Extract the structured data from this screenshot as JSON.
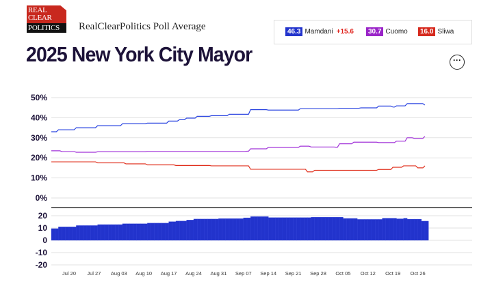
{
  "logo": {
    "line1": "REAL",
    "line2": "CLEAR",
    "line3": "POLITICS"
  },
  "header": {
    "subtitle": "RealClearPolitics Poll Average",
    "title": "2025 New York City Mayor",
    "more_icon": "ellipsis-icon"
  },
  "legend": [
    {
      "value": "46.3",
      "name": "Mamdani",
      "delta": "+15.6",
      "color": "#2233cc"
    },
    {
      "value": "30.7",
      "name": "Cuomo",
      "delta": "",
      "color": "#9a24c8"
    },
    {
      "value": "16.0",
      "name": "Sliwa",
      "delta": "",
      "color": "#d62a1e"
    }
  ],
  "chart_data": [
    {
      "type": "line",
      "ylim": [
        0,
        50
      ],
      "y_ticks": [
        "50%",
        "40%",
        "30%",
        "20%",
        "10%",
        "0%"
      ],
      "grid": true,
      "series": [
        {
          "name": "Mamdani",
          "color": "#2a44e0",
          "points": [
            [
              "2025-07-15",
              33
            ],
            [
              "2025-07-17",
              34
            ],
            [
              "2025-07-22",
              35
            ],
            [
              "2025-07-28",
              36
            ],
            [
              "2025-08-04",
              37
            ],
            [
              "2025-08-11",
              37.3
            ],
            [
              "2025-08-17",
              38.3
            ],
            [
              "2025-08-20",
              39
            ],
            [
              "2025-08-22",
              39.8
            ],
            [
              "2025-08-25",
              40.7
            ],
            [
              "2025-08-29",
              41
            ],
            [
              "2025-09-03",
              41.7
            ],
            [
              "2025-09-09",
              44
            ],
            [
              "2025-09-14",
              43.8
            ],
            [
              "2025-09-23",
              44.5
            ],
            [
              "2025-10-04",
              44.7
            ],
            [
              "2025-10-10",
              44.9
            ],
            [
              "2025-10-15",
              45.8
            ],
            [
              "2025-10-19",
              45.3
            ],
            [
              "2025-10-20",
              45.9
            ],
            [
              "2025-10-23",
              47
            ],
            [
              "2025-10-26",
              47
            ],
            [
              "2025-10-28",
              46.3
            ]
          ]
        },
        {
          "name": "Cuomo",
          "color": "#a030d8",
          "points": [
            [
              "2025-07-15",
              23.5
            ],
            [
              "2025-07-18",
              23.1
            ],
            [
              "2025-07-22",
              22.8
            ],
            [
              "2025-07-28",
              23
            ],
            [
              "2025-08-11",
              23.2
            ],
            [
              "2025-09-08",
              23.3
            ],
            [
              "2025-09-09",
              24.5
            ],
            [
              "2025-09-14",
              25.2
            ],
            [
              "2025-09-23",
              25.8
            ],
            [
              "2025-09-26",
              25.4
            ],
            [
              "2025-10-03",
              25.3
            ],
            [
              "2025-10-04",
              27
            ],
            [
              "2025-10-08",
              27.8
            ],
            [
              "2025-10-15",
              27.6
            ],
            [
              "2025-10-20",
              28.3
            ],
            [
              "2025-10-23",
              30
            ],
            [
              "2025-10-25",
              29.7
            ],
            [
              "2025-10-28",
              30.7
            ]
          ]
        },
        {
          "name": "Sliwa",
          "color": "#e0301e",
          "points": [
            [
              "2025-07-15",
              18
            ],
            [
              "2025-07-28",
              17.5
            ],
            [
              "2025-08-05",
              17
            ],
            [
              "2025-08-11",
              16.5
            ],
            [
              "2025-08-19",
              16.2
            ],
            [
              "2025-08-29",
              16
            ],
            [
              "2025-09-08",
              16
            ],
            [
              "2025-09-09",
              14.3
            ],
            [
              "2025-09-23",
              14.3
            ],
            [
              "2025-09-25",
              13
            ],
            [
              "2025-09-27",
              13.8
            ],
            [
              "2025-10-15",
              14.2
            ],
            [
              "2025-10-19",
              15.3
            ],
            [
              "2025-10-22",
              16
            ],
            [
              "2025-10-25",
              16
            ],
            [
              "2025-10-26",
              15
            ],
            [
              "2025-10-28",
              16
            ]
          ]
        }
      ]
    },
    {
      "type": "bar",
      "ylim": [
        -20,
        20
      ],
      "y_ticks": [
        "20",
        "10",
        "0",
        "-10",
        "-20"
      ],
      "color": "#2233cc",
      "spread_steps": [
        [
          "2025-07-15",
          9.5
        ],
        [
          "2025-07-17",
          11
        ],
        [
          "2025-07-22",
          12
        ],
        [
          "2025-07-28",
          12.8
        ],
        [
          "2025-08-04",
          13.5
        ],
        [
          "2025-08-11",
          14
        ],
        [
          "2025-08-17",
          15.2
        ],
        [
          "2025-08-19",
          15.7
        ],
        [
          "2025-08-22",
          16.5
        ],
        [
          "2025-08-24",
          17.3
        ],
        [
          "2025-08-31",
          17.7
        ],
        [
          "2025-09-07",
          18.3
        ],
        [
          "2025-09-09",
          19.3
        ],
        [
          "2025-09-14",
          18.5
        ],
        [
          "2025-09-26",
          18.8
        ],
        [
          "2025-10-05",
          17.8
        ],
        [
          "2025-10-09",
          17
        ],
        [
          "2025-10-16",
          18
        ],
        [
          "2025-10-20",
          17.5
        ],
        [
          "2025-10-22",
          18
        ],
        [
          "2025-10-23",
          17.2
        ],
        [
          "2025-10-27",
          15.6
        ]
      ],
      "end_date": "2025-10-28",
      "x_ticks": [
        "Jul 20",
        "Jul 27",
        "Aug 03",
        "Aug 10",
        "Aug 17",
        "Aug 24",
        "Aug 31",
        "Sep 07",
        "Sep 14",
        "Sep 21",
        "Sep 28",
        "Oct 05",
        "Oct 12",
        "Oct 19",
        "Oct 26"
      ]
    }
  ]
}
